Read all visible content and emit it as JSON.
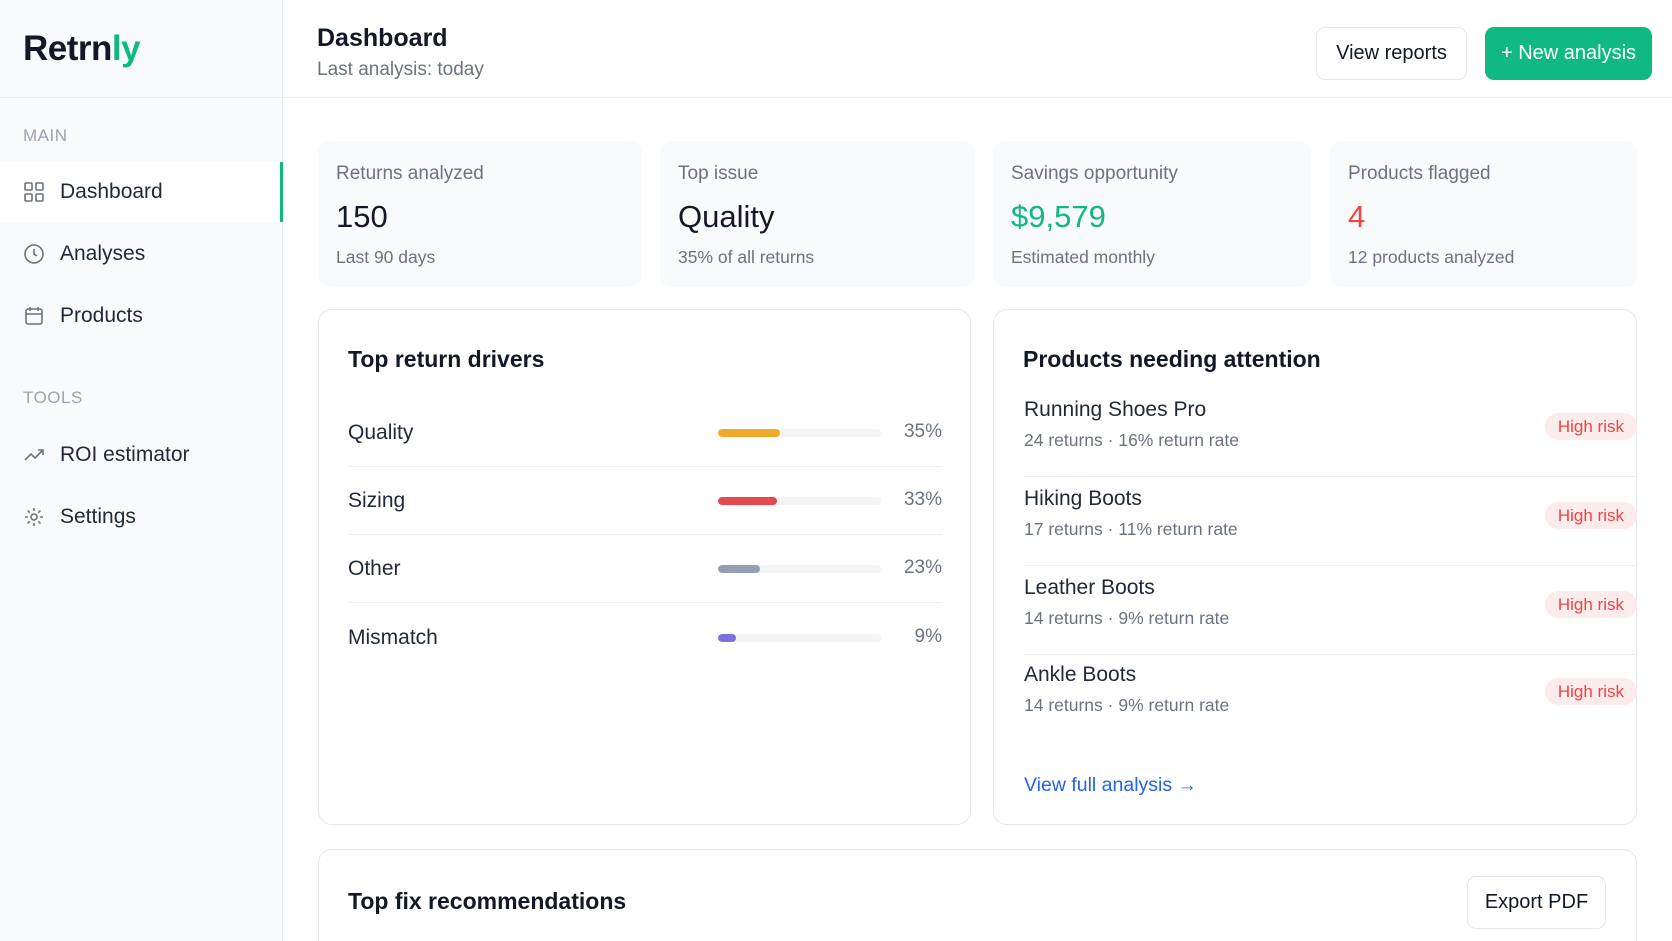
{
  "brand": {
    "name_main": "Retrn",
    "name_accent": "ly",
    "accent_color": "#10b981"
  },
  "sidebar": {
    "sections": [
      {
        "label": "MAIN",
        "items": [
          {
            "label": "Dashboard",
            "icon": "grid-icon",
            "active": true
          },
          {
            "label": "Analyses",
            "icon": "clock-icon"
          },
          {
            "label": "Products",
            "icon": "calendar-icon"
          }
        ]
      },
      {
        "label": "TOOLS",
        "items": [
          {
            "label": "ROI estimator",
            "icon": "trending-up-icon"
          },
          {
            "label": "Settings",
            "icon": "gear-icon"
          }
        ]
      }
    ]
  },
  "header": {
    "title": "Dashboard",
    "subtitle": "Last analysis: today",
    "view_reports_label": "View reports",
    "new_analysis_label": "+ New analysis"
  },
  "stats": [
    {
      "label": "Returns analyzed",
      "value": "150",
      "sub": "Last 90 days",
      "color": "#111827"
    },
    {
      "label": "Top issue",
      "value": "Quality",
      "sub": "35% of all returns",
      "color": "#111827"
    },
    {
      "label": "Savings opportunity",
      "value": "$9,579",
      "sub": "Estimated monthly",
      "color": "#10b981"
    },
    {
      "label": "Products flagged",
      "value": "4",
      "sub": "12 products analyzed",
      "color": "#ef4444"
    }
  ],
  "drivers": {
    "title": "Top return drivers",
    "items": [
      {
        "label": "Quality",
        "pct_text": "35%",
        "fill": 0.38,
        "color": "#f0a92a"
      },
      {
        "label": "Sizing",
        "pct_text": "33%",
        "fill": 0.36,
        "color": "#e5484d"
      },
      {
        "label": "Other",
        "pct_text": "23%",
        "fill": 0.26,
        "color": "#94a0b2"
      },
      {
        "label": "Mismatch",
        "pct_text": "9%",
        "fill": 0.11,
        "color": "#7c6fe0"
      }
    ]
  },
  "attention": {
    "title": "Products needing attention",
    "items": [
      {
        "name": "Running Shoes Pro",
        "meta": "24 returns · 16% return rate",
        "badge": "High risk"
      },
      {
        "name": "Hiking Boots",
        "meta": "17 returns · 11% return rate",
        "badge": "High risk"
      },
      {
        "name": "Leather Boots",
        "meta": "14 returns · 9% return rate",
        "badge": "High risk"
      },
      {
        "name": "Ankle Boots",
        "meta": "14 returns · 9% return rate",
        "badge": "High risk"
      }
    ],
    "link_label": "View full analysis →"
  },
  "recommendations": {
    "title": "Top fix recommendations",
    "export_label": "Export PDF"
  }
}
